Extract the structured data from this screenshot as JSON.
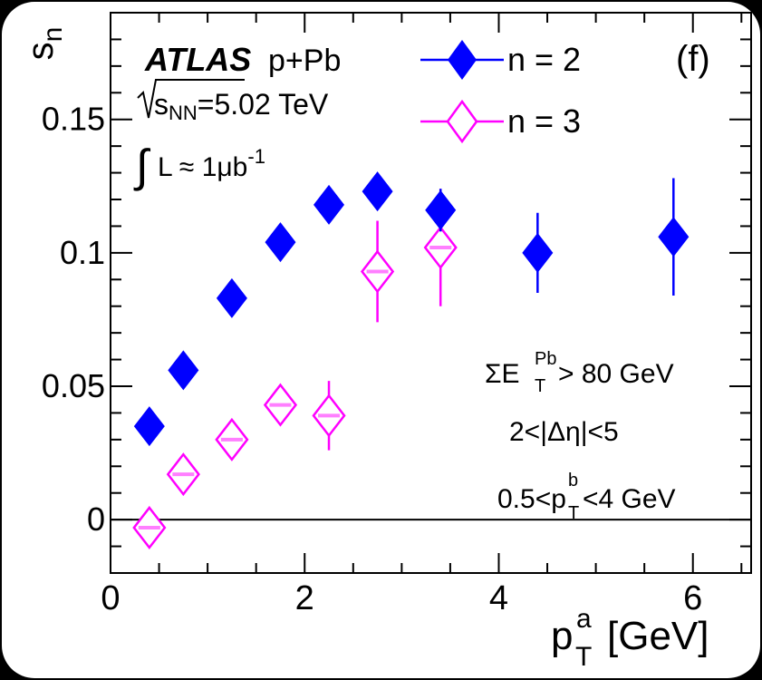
{
  "chart_data": {
    "type": "scatter",
    "panel_label": "(f)",
    "ylabel": "s",
    "ylabel_sub": "n",
    "xlabel": "p",
    "xlabel_sup": "a",
    "xlabel_sub": "T",
    "xlabel_unit": "[GeV]",
    "xlim": [
      0,
      6.6
    ],
    "ylim": [
      -0.02,
      0.19
    ],
    "x_ticks": [
      0,
      2,
      4,
      6
    ],
    "x_tick_labels": [
      "0",
      "2",
      "4",
      "6"
    ],
    "y_ticks": [
      0,
      0.05,
      0.1,
      0.15
    ],
    "y_tick_labels": [
      "0",
      "0.05",
      "0.1",
      "0.15"
    ],
    "zero_line": true,
    "legend_position": "top",
    "annotations": {
      "experiment": "ATLAS",
      "system": "p+Pb",
      "energy_s": "s",
      "energy_sub": "NN",
      "energy_value": "=5.02 TeV",
      "lumi_int": "∫",
      "lumi_text": "L ≈ 1μb",
      "lumi_sup": "-1",
      "et_cut_main": "ΣE",
      "et_cut_sub": "T",
      "et_cut_sup": "Pb",
      "et_cut_rest": " > 80 GeV",
      "deta_cut": "2<|Δη|<5",
      "ptb_left": "0.5<p",
      "ptb_sub": "T",
      "ptb_sup": "b",
      "ptb_right": "<4 GeV"
    },
    "series": [
      {
        "name": "n = 2",
        "color": "#0000ff",
        "marker": "filled-diamond",
        "x": [
          0.4,
          0.75,
          1.25,
          1.75,
          2.25,
          2.75,
          3.4,
          4.4,
          5.8
        ],
        "y": [
          0.035,
          0.056,
          0.083,
          0.104,
          0.118,
          0.123,
          0.116,
          0.1,
          0.106
        ],
        "err": [
          0.003,
          0.003,
          0.003,
          0.004,
          0.004,
          0.006,
          0.008,
          0.015,
          0.022
        ]
      },
      {
        "name": "n = 3",
        "color": "#ff00ff",
        "marker": "open-diamond",
        "x": [
          0.4,
          0.75,
          1.25,
          1.75,
          2.25,
          2.75,
          3.4
        ],
        "y": [
          -0.003,
          0.017,
          0.03,
          0.043,
          0.039,
          0.093,
          0.102
        ],
        "err": [
          0.003,
          0.003,
          0.004,
          0.006,
          0.013,
          0.019,
          0.022
        ]
      }
    ]
  }
}
